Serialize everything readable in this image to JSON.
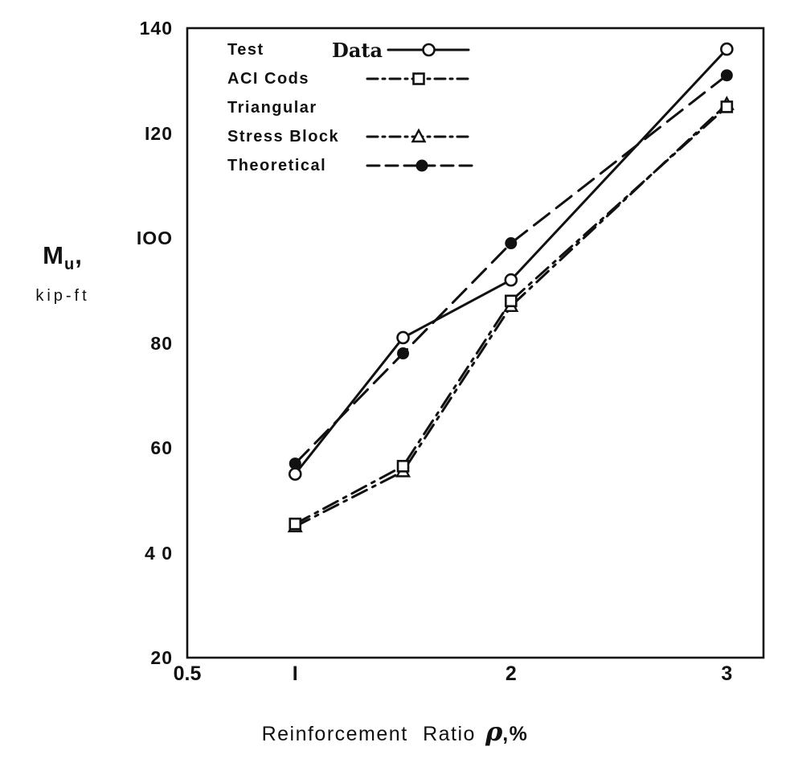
{
  "colors": {
    "ink": "#111111",
    "background": "#ffffff"
  },
  "labels": {
    "y_main": "M",
    "y_sub": "u",
    "y_comma": ",",
    "y_unit": "kip-ft",
    "x_text": "Reinforcement Ratio",
    "x_symbol": "ρ",
    "x_suffix": ",%"
  },
  "legend": {
    "items": [
      {
        "label": "Test",
        "label2": "Data"
      },
      {
        "label": "ACI Cods"
      },
      {
        "label": "Triangular"
      },
      {
        "label": "Stress Block"
      },
      {
        "label": "Theoretical"
      }
    ]
  },
  "chart_data": {
    "type": "line",
    "title": "",
    "xlabel": "Reinforcement Ratio ρ,%",
    "ylabel": "Mu, kip-ft",
    "xlim": [
      0.5,
      3.17
    ],
    "ylim": [
      20,
      140
    ],
    "grid": false,
    "legend_position": "top-left-inside",
    "xticks": [
      {
        "value": 0.5,
        "label": "0.5"
      },
      {
        "value": 1,
        "label": "I"
      },
      {
        "value": 2,
        "label": "2"
      },
      {
        "value": 3,
        "label": "3"
      }
    ],
    "yticks": [
      {
        "value": 140,
        "label": "140"
      },
      {
        "value": 120,
        "label": "I20"
      },
      {
        "value": 100,
        "label": "IOO"
      },
      {
        "value": 80,
        "label": "80"
      },
      {
        "value": 60,
        "label": "60"
      },
      {
        "value": 40,
        "label": "4 0"
      },
      {
        "value": 20,
        "label": "20"
      }
    ],
    "series": [
      {
        "name": "Test Data",
        "x": [
          1,
          1.5,
          2,
          3
        ],
        "y": [
          55,
          81,
          92,
          136
        ],
        "line": "solid",
        "marker": "circle-open"
      },
      {
        "name": "ACI Cods",
        "x": [
          1,
          1.5,
          2,
          3
        ],
        "y": [
          45.5,
          56.5,
          88,
          125
        ],
        "line": "dashdot",
        "marker": "square-open"
      },
      {
        "name": "Triangular Stress Block",
        "x": [
          1,
          1.5,
          2,
          3
        ],
        "y": [
          45,
          55.5,
          87,
          125.5
        ],
        "line": "dashdot",
        "marker": "triangle-open"
      },
      {
        "name": "Theoretical",
        "x": [
          1,
          1.5,
          2,
          3
        ],
        "y": [
          57,
          78,
          99,
          131
        ],
        "line": "dashed",
        "marker": "circle-filled"
      }
    ]
  }
}
